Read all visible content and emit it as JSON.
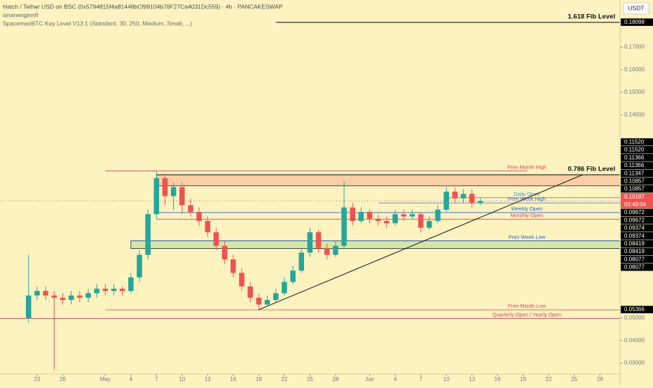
{
  "chart_data": {
    "type": "candlestick",
    "title": "Hatch / Tether USD on BSC (0x5794815f4a81448bCf99104b78F27Ca4031Dc559) · 4h · PANCAKESWAP",
    "author": "sinanenginnft",
    "indicator": "SpacemanBTC Key Level V13.1 (Standard, 30, 250, Medium, Small, ...)",
    "currency": "USDT",
    "up_color": "#26a69a",
    "down_color": "#ef5350",
    "x": [
      -1,
      0,
      1,
      2,
      3,
      4,
      5,
      6,
      7,
      8,
      9,
      10,
      11,
      12,
      13,
      14,
      15,
      16,
      17,
      18,
      19,
      20,
      21,
      22,
      23,
      24,
      25,
      26,
      27,
      28,
      29,
      30,
      31,
      32,
      33,
      34,
      35,
      36,
      37,
      38,
      39,
      40,
      41,
      42,
      43,
      44,
      45,
      46,
      47,
      48,
      49,
      50,
      51,
      52
    ],
    "open": [
      0.05,
      0.06,
      0.062,
      0.06,
      0.059,
      0.058,
      0.06,
      0.059,
      0.061,
      0.063,
      0.062,
      0.063,
      0.062,
      0.068,
      0.078,
      0.096,
      0.112,
      0.104,
      0.108,
      0.1,
      0.097,
      0.093,
      0.088,
      0.082,
      0.076,
      0.07,
      0.064,
      0.059,
      0.056,
      0.058,
      0.061,
      0.066,
      0.071,
      0.079,
      0.088,
      0.081,
      0.078,
      0.082,
      0.099,
      0.093,
      0.097,
      0.094,
      0.093,
      0.092,
      0.096,
      0.095,
      0.096,
      0.09,
      0.093,
      0.098,
      0.106,
      0.103,
      0.105,
      0.101
    ],
    "high": [
      0.078,
      0.064,
      0.064,
      0.062,
      0.061,
      0.062,
      0.062,
      0.063,
      0.065,
      0.065,
      0.065,
      0.064,
      0.07,
      0.08,
      0.098,
      0.1152,
      0.114,
      0.11,
      0.11,
      0.103,
      0.099,
      0.095,
      0.09,
      0.084,
      0.078,
      0.072,
      0.066,
      0.061,
      0.06,
      0.063,
      0.068,
      0.073,
      0.081,
      0.09,
      0.089,
      0.083,
      0.084,
      0.1105,
      0.101,
      0.099,
      0.098,
      0.096,
      0.095,
      0.098,
      0.098,
      0.098,
      0.097,
      0.095,
      0.1,
      0.108,
      0.108,
      0.107,
      0.107,
      0.103
    ],
    "low": [
      0.048,
      0.058,
      0.058,
      0.027,
      0.056,
      0.056,
      0.057,
      0.057,
      0.059,
      0.06,
      0.06,
      0.06,
      0.061,
      0.066,
      0.076,
      0.094,
      0.1,
      0.098,
      0.096,
      0.095,
      0.091,
      0.086,
      0.08,
      0.074,
      0.068,
      0.062,
      0.057,
      0.0537,
      0.055,
      0.057,
      0.06,
      0.065,
      0.07,
      0.077,
      0.079,
      0.076,
      0.077,
      0.081,
      0.091,
      0.092,
      0.092,
      0.091,
      0.09,
      0.091,
      0.093,
      0.094,
      0.088,
      0.089,
      0.092,
      0.097,
      0.101,
      0.101,
      0.099,
      0.1
    ],
    "close": [
      0.06,
      0.062,
      0.06,
      0.059,
      0.058,
      0.06,
      0.059,
      0.061,
      0.063,
      0.062,
      0.063,
      0.062,
      0.068,
      0.078,
      0.096,
      0.112,
      0.104,
      0.108,
      0.1,
      0.097,
      0.093,
      0.088,
      0.082,
      0.076,
      0.07,
      0.064,
      0.059,
      0.056,
      0.058,
      0.061,
      0.066,
      0.071,
      0.079,
      0.088,
      0.081,
      0.078,
      0.082,
      0.099,
      0.093,
      0.097,
      0.094,
      0.093,
      0.092,
      0.096,
      0.095,
      0.096,
      0.09,
      0.093,
      0.098,
      0.106,
      0.103,
      0.105,
      0.101,
      0.10187
    ],
    "xlim": [
      -4.35,
      68.37
    ],
    "ylim": [
      0.0252,
      0.1909
    ],
    "xticks": [
      {
        "value": 0,
        "label": "23"
      },
      {
        "value": 3,
        "label": "26"
      },
      {
        "value": 8,
        "label": "May"
      },
      {
        "value": 11,
        "label": "4"
      },
      {
        "value": 14,
        "label": "7"
      },
      {
        "value": 17,
        "label": "10"
      },
      {
        "value": 20,
        "label": "13"
      },
      {
        "value": 23,
        "label": "16"
      },
      {
        "value": 26,
        "label": "19"
      },
      {
        "value": 29,
        "label": "22"
      },
      {
        "value": 32,
        "label": "25"
      },
      {
        "value": 35,
        "label": "28"
      },
      {
        "value": 39,
        "label": "Jun"
      },
      {
        "value": 42,
        "label": "4"
      },
      {
        "value": 45,
        "label": "7"
      },
      {
        "value": 48,
        "label": "10"
      },
      {
        "value": 51,
        "label": "13"
      },
      {
        "value": 54,
        "label": "16"
      },
      {
        "value": 57,
        "label": "19"
      },
      {
        "value": 60,
        "label": "22"
      },
      {
        "value": 63,
        "label": "25"
      },
      {
        "value": 66,
        "label": "28"
      }
    ],
    "yticks": [
      {
        "value": 0.17,
        "label": "0.17000"
      },
      {
        "value": 0.16,
        "label": "0.16000"
      },
      {
        "value": 0.15,
        "label": "0.15000"
      },
      {
        "value": 0.14,
        "label": "0.14000"
      },
      {
        "value": 0.05,
        "label": "0.05000"
      },
      {
        "value": 0.04,
        "label": "0.04000"
      },
      {
        "value": 0.03,
        "label": "0.03000"
      }
    ],
    "zones": [
      {
        "from": 0.10857,
        "to": 0.11347,
        "x0": 14,
        "color": "#f9cfa6"
      },
      {
        "from": 0.08077,
        "to": 0.08419,
        "x0": 11,
        "color": "#d3e8a8"
      }
    ],
    "levels": [
      {
        "label": "1.618 Fib Level",
        "value": 0.18098,
        "x0": 28,
        "color": "#000000",
        "kind": "fib"
      },
      {
        "label": "Prev Month High",
        "value": 0.1152,
        "x0": 8,
        "x1": 57.5,
        "color": "#e0405a",
        "kind": "key"
      },
      {
        "label": "0.786 Fib Level",
        "value": 0.11347,
        "x0": 14,
        "color": "#000000",
        "kind": "fib"
      },
      {
        "label": "Daily Open",
        "value": 0.1033,
        "x0": 48,
        "color": "#3f8fd6",
        "kind": "key"
      },
      {
        "label": "Prev Week High",
        "value": 0.101,
        "x0": 40,
        "color": "#3f6fd6",
        "kind": "key"
      },
      {
        "label": "Weekly Open",
        "value": 0.09672,
        "x0": 14,
        "color": "#2a5fc8",
        "kind": "key"
      },
      {
        "label": "Monthly Open",
        "value": 0.09374,
        "x0": 14,
        "color": "#e0405a",
        "kind": "key"
      },
      {
        "label": "Prev Week Low",
        "value": 0.08419,
        "x0": 11,
        "color": "#2a5fc8",
        "kind": "key"
      },
      {
        "label": "Prev Month Low",
        "value": 0.05366,
        "x0": 8,
        "color": "#e0405a",
        "kind": "key"
      },
      {
        "label": "Quarterly Open / Yearly Open",
        "value": 0.0498,
        "x0": -4.35,
        "color": "#e0405a",
        "kind": "key"
      }
    ],
    "trendline": {
      "x": [
        26,
        64
      ],
      "y": [
        0.0537,
        0.1135
      ]
    },
    "price_labels": [
      {
        "value": 0.18098,
        "label": "0.18098"
      },
      {
        "value": 0.1152,
        "label": "0.11520"
      },
      {
        "value": 0.1152,
        "label": "0.11520"
      },
      {
        "value": 0.11366,
        "label": "0.11366"
      },
      {
        "value": 0.11366,
        "label": "0.11366"
      },
      {
        "value": 0.11347,
        "label": "0.11347"
      },
      {
        "value": 0.10857,
        "label": "0.10857"
      },
      {
        "value": 0.10857,
        "label": "0.10857"
      },
      {
        "value": 0.10187,
        "label": "0.10187",
        "countdown": "03:49:04",
        "current": true
      },
      {
        "value": 0.09672,
        "label": "0.09672"
      },
      {
        "value": 0.09672,
        "label": "0.09672"
      },
      {
        "value": 0.09374,
        "label": "0.09374"
      },
      {
        "value": 0.09374,
        "label": "0.09374"
      },
      {
        "value": 0.08419,
        "label": "0.08419"
      },
      {
        "value": 0.08419,
        "label": "0.08419"
      },
      {
        "value": 0.08077,
        "label": "0.08077"
      },
      {
        "value": 0.08077,
        "label": "0.08077"
      },
      {
        "value": 0.05366,
        "label": "0.05366"
      }
    ]
  }
}
